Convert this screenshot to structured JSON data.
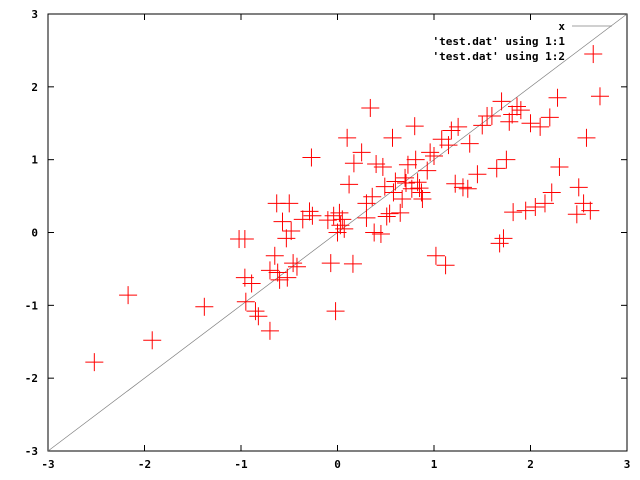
{
  "chart_data": {
    "type": "scatter",
    "xlim": [
      -3,
      3
    ],
    "ylim": [
      -3,
      3
    ],
    "xticks": [
      "-3",
      "-2",
      "-1",
      "0",
      "1",
      "2",
      "3"
    ],
    "yticks": [
      "-3",
      "-2",
      "-1",
      "0",
      "1",
      "2",
      "3"
    ],
    "grid": false,
    "legend_position": "top-right",
    "series": [
      {
        "name": "x",
        "kind": "line",
        "color": "#808080",
        "function": "y=x"
      },
      {
        "name": "'test.dat' using 1:1",
        "kind": "points",
        "marker": "plus",
        "color": "#ff0000",
        "points": []
      },
      {
        "name": "'test.dat' using 1:2",
        "kind": "points",
        "marker": "plus",
        "color": "#ff0000",
        "points": [
          [
            -2.52,
            -1.78
          ],
          [
            -2.17,
            -0.86
          ],
          [
            -1.92,
            -1.48
          ],
          [
            -1.38,
            -1.02
          ],
          [
            -1.02,
            -0.09
          ],
          [
            -0.96,
            -0.09
          ],
          [
            -0.96,
            -0.62
          ],
          [
            -0.95,
            -0.95
          ],
          [
            -0.89,
            -0.7
          ],
          [
            -0.85,
            -1.08
          ],
          [
            -0.82,
            -1.15
          ],
          [
            -0.7,
            -1.35
          ],
          [
            -0.7,
            -0.52
          ],
          [
            -0.65,
            -0.32
          ],
          [
            -0.63,
            0.4
          ],
          [
            -0.62,
            -0.55
          ],
          [
            -0.6,
            -0.65
          ],
          [
            -0.57,
            0.15
          ],
          [
            -0.53,
            -0.08
          ],
          [
            -0.52,
            -0.62
          ],
          [
            -0.5,
            0.4
          ],
          [
            -0.48,
            0.02
          ],
          [
            -0.46,
            -0.42
          ],
          [
            -0.42,
            -0.47
          ],
          [
            -0.36,
            0.18
          ],
          [
            -0.29,
            0.29
          ],
          [
            -0.27,
            1.03
          ],
          [
            -0.26,
            0.23
          ],
          [
            -0.1,
            0.17
          ],
          [
            -0.07,
            -0.42
          ],
          [
            -0.04,
            0.23
          ],
          [
            -0.02,
            -1.08
          ],
          [
            0.0,
            0.0
          ],
          [
            0.02,
            0.27
          ],
          [
            0.03,
            0.1
          ],
          [
            0.05,
            0.18
          ],
          [
            0.07,
            0.05
          ],
          [
            0.1,
            1.3
          ],
          [
            0.12,
            0.66
          ],
          [
            0.16,
            -0.43
          ],
          [
            0.17,
            0.95
          ],
          [
            0.25,
            1.1
          ],
          [
            0.3,
            0.4
          ],
          [
            0.3,
            0.2
          ],
          [
            0.34,
            1.71
          ],
          [
            0.36,
            0.49
          ],
          [
            0.38,
            0.0
          ],
          [
            0.4,
            0.94
          ],
          [
            0.45,
            -0.02
          ],
          [
            0.47,
            0.9
          ],
          [
            0.49,
            0.63
          ],
          [
            0.51,
            0.22
          ],
          [
            0.54,
            0.26
          ],
          [
            0.57,
            1.3
          ],
          [
            0.58,
            0.55
          ],
          [
            0.6,
            0.7
          ],
          [
            0.65,
            0.27
          ],
          [
            0.67,
            0.46
          ],
          [
            0.7,
            0.75
          ],
          [
            0.71,
            0.68
          ],
          [
            0.73,
            0.93
          ],
          [
            0.77,
            0.6
          ],
          [
            0.8,
            1.46
          ],
          [
            0.81,
            1.0
          ],
          [
            0.83,
            0.69
          ],
          [
            0.85,
            0.61
          ],
          [
            0.87,
            0.55
          ],
          [
            0.88,
            0.46
          ],
          [
            0.93,
            0.85
          ],
          [
            0.96,
            1.1
          ],
          [
            1.0,
            1.05
          ],
          [
            1.02,
            -0.32
          ],
          [
            1.08,
            1.28
          ],
          [
            1.12,
            -0.45
          ],
          [
            1.15,
            1.2
          ],
          [
            1.18,
            1.4
          ],
          [
            1.22,
            0.67
          ],
          [
            1.25,
            1.45
          ],
          [
            1.3,
            0.62
          ],
          [
            1.35,
            0.6
          ],
          [
            1.37,
            1.22
          ],
          [
            1.45,
            0.8
          ],
          [
            1.5,
            1.47
          ],
          [
            1.55,
            1.6
          ],
          [
            1.6,
            1.6
          ],
          [
            1.65,
            0.88
          ],
          [
            1.68,
            -0.15
          ],
          [
            1.7,
            1.8
          ],
          [
            1.72,
            -0.08
          ],
          [
            1.75,
            1.0
          ],
          [
            1.78,
            1.52
          ],
          [
            1.81,
            1.62
          ],
          [
            1.82,
            0.28
          ],
          [
            1.86,
            1.73
          ],
          [
            1.9,
            1.68
          ],
          [
            1.95,
            0.3
          ],
          [
            2.0,
            1.5
          ],
          [
            2.05,
            0.35
          ],
          [
            2.1,
            1.45
          ],
          [
            2.15,
            0.4
          ],
          [
            2.2,
            1.58
          ],
          [
            2.22,
            0.55
          ],
          [
            2.28,
            1.85
          ],
          [
            2.3,
            0.9
          ],
          [
            2.48,
            0.25
          ],
          [
            2.5,
            0.62
          ],
          [
            2.55,
            0.4
          ],
          [
            2.58,
            1.3
          ],
          [
            2.62,
            0.3
          ],
          [
            2.65,
            2.45
          ],
          [
            2.72,
            1.87
          ]
        ]
      }
    ]
  }
}
